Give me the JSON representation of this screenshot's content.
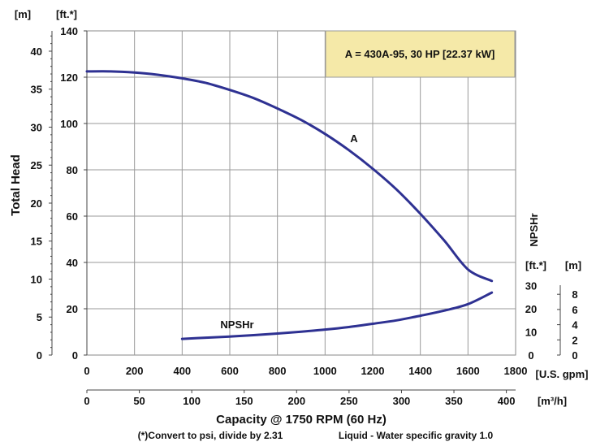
{
  "chart_data": {
    "type": "line",
    "title": "",
    "xlabel": "Capacity @ 1750 RPM (60 Hz)",
    "ylabel": "Total Head",
    "footnote": "(*)Convert to psi, divide by 2.31",
    "liquid_note": "Liquid - Water specific gravity 1.0",
    "grid": true,
    "annotation": "A = 430A-95, 30 HP [22.37 kW]",
    "annotation_color": "#f5e9a8",
    "line_color": "#2e3192",
    "axes": {
      "x_primary": {
        "unit": "[U.S. gpm]",
        "range": [
          0,
          1800
        ],
        "ticks": [
          "0",
          "200",
          "400",
          "600",
          "800",
          "1000",
          "1200",
          "1400",
          "1600",
          "1800"
        ]
      },
      "x_secondary": {
        "unit": "[m³/h]",
        "range": [
          0,
          408.8
        ],
        "ticks": [
          "0",
          "50",
          "100",
          "150",
          "200",
          "250",
          "300",
          "350",
          "400"
        ]
      },
      "y_left_ft": {
        "unit": "[ft.*]",
        "range": [
          0,
          140
        ],
        "ticks": [
          "0",
          "20",
          "40",
          "60",
          "80",
          "100",
          "120",
          "140"
        ]
      },
      "y_left_m": {
        "unit": "[m]",
        "ticks": [
          "0",
          "5",
          "10",
          "15",
          "20",
          "25",
          "30",
          "35",
          "40"
        ]
      },
      "y_right_label": "NPSHr",
      "y_right_ft": {
        "unit": "[ft.*]",
        "ticks": [
          "0",
          "10",
          "20",
          "30"
        ]
      },
      "y_right_m": {
        "unit": "[m]",
        "ticks": [
          "0",
          "2",
          "4",
          "6",
          "8"
        ]
      }
    },
    "series": [
      {
        "name": "A",
        "x": [
          0,
          100,
          200,
          300,
          400,
          500,
          600,
          700,
          800,
          900,
          1000,
          1100,
          1200,
          1300,
          1400,
          1500,
          1600,
          1700
        ],
        "y": [
          122.5,
          122.5,
          122,
          121,
          119.5,
          117.5,
          114.5,
          111,
          106.5,
          101.5,
          95.5,
          88.5,
          80.5,
          71.5,
          61,
          49.5,
          37,
          32
        ]
      },
      {
        "name": "NPSHr",
        "x": [
          400,
          500,
          600,
          700,
          800,
          900,
          1000,
          1100,
          1200,
          1300,
          1400,
          1500,
          1600,
          1700
        ],
        "y": [
          7,
          7.5,
          8,
          8.6,
          9.3,
          10.1,
          11,
          12.1,
          13.5,
          15,
          17,
          19.2,
          22,
          27
        ]
      }
    ]
  }
}
